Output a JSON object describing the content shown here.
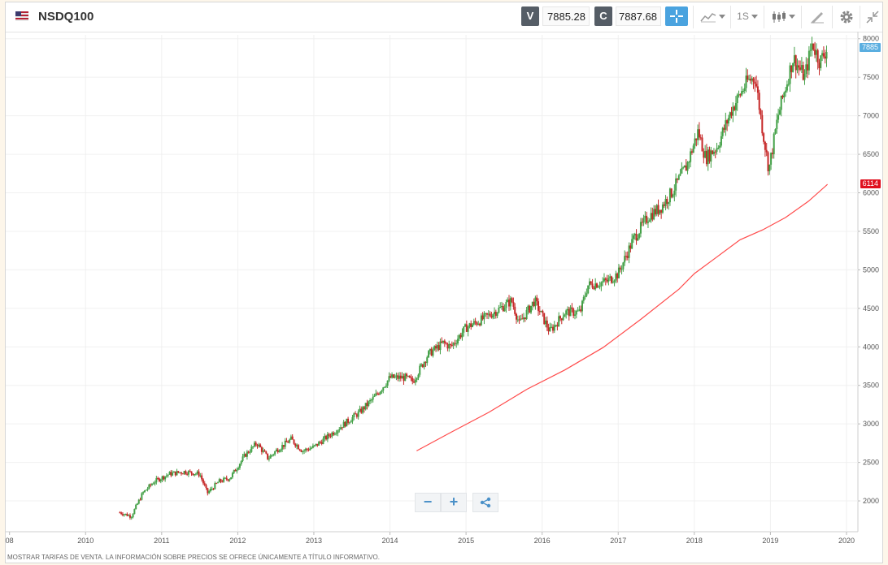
{
  "header": {
    "symbol": "NSDQ100",
    "sell_label": "V",
    "sell_price": "7885.28",
    "buy_label": "C",
    "buy_price": "7887.68",
    "timeframe": "1S"
  },
  "icons": [
    "flag-icon",
    "crosshair-icon",
    "chart-type-icon",
    "candlestick-icon",
    "drawing-tools-icon",
    "gear-icon",
    "collapse-icon",
    "zoom-out-icon",
    "zoom-in-icon",
    "share-icon"
  ],
  "price_tags": {
    "last": "7885",
    "ma": "6114"
  },
  "colors": {
    "up": "#43a047",
    "down": "#c62828",
    "ma": "#ff4b4b",
    "last_tag": "#5aaee0",
    "ma_tag": "#e0101e",
    "crosshair_active": "#4aa3df"
  },
  "footer": "MOSTRAR TARIFAS DE VENTA. LA INFORMACIÓN SOBRE PRECIOS SE OFRECE ÚNICAMENTE A TÍTULO INFORMATIVO.",
  "chart_data": {
    "type": "candlestick",
    "x_ticks": [
      "08",
      "2010",
      "2011",
      "2012",
      "2013",
      "2014",
      "2015",
      "2016",
      "2017",
      "2018",
      "2019",
      "2020"
    ],
    "y_ticks": [
      "8000",
      "7500",
      "7000",
      "6500",
      "6000",
      "5500",
      "5000",
      "4500",
      "4000",
      "3500",
      "3000",
      "2500",
      "2000"
    ],
    "ylim": [
      1600,
      8050
    ],
    "xlim": [
      2008.95,
      2020.15
    ],
    "grid": true,
    "price_series": {
      "name": "NSDQ100",
      "x": [
        2010.45,
        2010.6,
        2010.75,
        2010.9,
        2011.1,
        2011.3,
        2011.5,
        2011.6,
        2011.75,
        2011.9,
        2012.1,
        2012.25,
        2012.4,
        2012.5,
        2012.7,
        2012.85,
        2013.0,
        2013.2,
        2013.4,
        2013.6,
        2013.8,
        2014.0,
        2014.2,
        2014.3,
        2014.5,
        2014.7,
        2014.8,
        2015.0,
        2015.2,
        2015.45,
        2015.6,
        2015.7,
        2015.9,
        2016.1,
        2016.3,
        2016.5,
        2016.6,
        2016.85,
        2017.0,
        2017.2,
        2017.4,
        2017.55,
        2017.7,
        2017.9,
        2018.05,
        2018.15,
        2018.3,
        2018.5,
        2018.7,
        2018.8,
        2018.9,
        2018.98,
        2019.1,
        2019.3,
        2019.45,
        2019.55,
        2019.65,
        2019.75
      ],
      "y": [
        1850,
        1800,
        2100,
        2250,
        2350,
        2380,
        2350,
        2100,
        2250,
        2300,
        2600,
        2750,
        2550,
        2650,
        2800,
        2650,
        2700,
        2850,
        3000,
        3150,
        3350,
        3600,
        3600,
        3550,
        3900,
        4050,
        4000,
        4250,
        4350,
        4500,
        4600,
        4300,
        4600,
        4200,
        4450,
        4450,
        4800,
        4850,
        4950,
        5400,
        5700,
        5800,
        6000,
        6350,
        6800,
        6450,
        6600,
        7100,
        7450,
        7500,
        6800,
        6300,
        7000,
        7750,
        7500,
        7950,
        7700,
        7885
      ]
    },
    "ma_series": {
      "x": [
        2014.35,
        2014.8,
        2015.3,
        2015.8,
        2016.3,
        2016.8,
        2017.3,
        2017.8,
        2018.0,
        2018.3,
        2018.6,
        2018.9,
        2019.2,
        2019.5,
        2019.75
      ],
      "y": [
        2650,
        2890,
        3150,
        3450,
        3700,
        3990,
        4360,
        4750,
        4950,
        5170,
        5390,
        5520,
        5680,
        5890,
        6110
      ]
    },
    "last_price": 7885,
    "ma_last": 6114
  }
}
